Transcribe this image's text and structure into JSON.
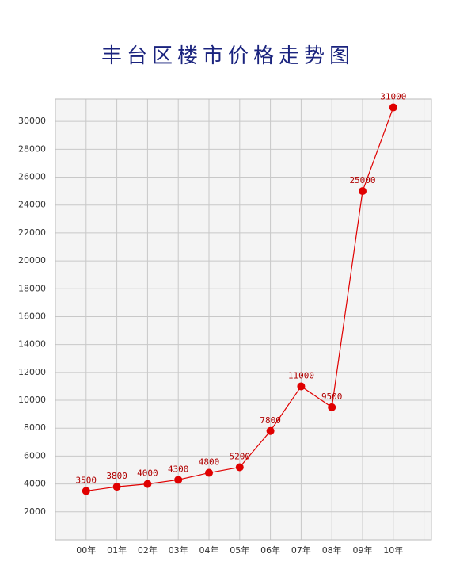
{
  "chart_data": {
    "type": "line",
    "title": "丰台区楼市价格走势图",
    "categories": [
      "00年",
      "01年",
      "02年",
      "03年",
      "04年",
      "05年",
      "06年",
      "07年",
      "08年",
      "09年",
      "10年"
    ],
    "series": [
      {
        "color": "#e00000",
        "values": [
          3500,
          3800,
          4000,
          4300,
          4800,
          5200,
          7800,
          11000,
          9500,
          25000,
          31000
        ]
      }
    ],
    "ylim": [
      0,
      31600
    ],
    "yticks": [
      2000,
      4000,
      6000,
      8000,
      10000,
      12000,
      14000,
      16000,
      18000,
      20000,
      22000,
      24000,
      26000,
      28000,
      30000
    ],
    "grid": true
  }
}
